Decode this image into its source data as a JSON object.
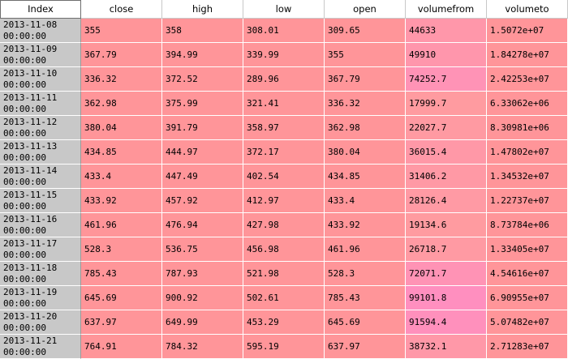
{
  "table": {
    "index_header": "Index",
    "columns": [
      "close",
      "high",
      "low",
      "open",
      "volumefrom",
      "volumeto"
    ],
    "rows": [
      {
        "index": "2013-11-08\n00:00:00",
        "cells": [
          "355",
          "358",
          "308.01",
          "309.65",
          "44633",
          "1.5072e+07"
        ]
      },
      {
        "index": "2013-11-09\n00:00:00",
        "cells": [
          "367.79",
          "394.99",
          "339.99",
          "355",
          "49910",
          "1.84278e+07"
        ]
      },
      {
        "index": "2013-11-10\n00:00:00",
        "cells": [
          "336.32",
          "372.52",
          "289.96",
          "367.79",
          "74252.7",
          "2.42253e+07"
        ]
      },
      {
        "index": "2013-11-11\n00:00:00",
        "cells": [
          "362.98",
          "375.99",
          "321.41",
          "336.32",
          "17999.7",
          "6.33062e+06"
        ]
      },
      {
        "index": "2013-11-12\n00:00:00",
        "cells": [
          "380.04",
          "391.79",
          "358.97",
          "362.98",
          "22027.7",
          "8.30981e+06"
        ]
      },
      {
        "index": "2013-11-13\n00:00:00",
        "cells": [
          "434.85",
          "444.97",
          "372.17",
          "380.04",
          "36015.4",
          "1.47802e+07"
        ]
      },
      {
        "index": "2013-11-14\n00:00:00",
        "cells": [
          "433.4",
          "447.49",
          "402.54",
          "434.85",
          "31406.2",
          "1.34532e+07"
        ]
      },
      {
        "index": "2013-11-15\n00:00:00",
        "cells": [
          "433.92",
          "457.92",
          "412.97",
          "433.4",
          "28126.4",
          "1.22737e+07"
        ]
      },
      {
        "index": "2013-11-16\n00:00:00",
        "cells": [
          "461.96",
          "476.94",
          "427.98",
          "433.92",
          "19134.6",
          "8.73784e+06"
        ]
      },
      {
        "index": "2013-11-17\n00:00:00",
        "cells": [
          "528.3",
          "536.75",
          "456.98",
          "461.96",
          "26718.7",
          "1.33405e+07"
        ]
      },
      {
        "index": "2013-11-18\n00:00:00",
        "cells": [
          "785.43",
          "787.93",
          "521.98",
          "528.3",
          "72071.7",
          "4.54616e+07"
        ]
      },
      {
        "index": "2013-11-19\n00:00:00",
        "cells": [
          "645.69",
          "900.92",
          "502.61",
          "785.43",
          "99101.8",
          "6.90955e+07"
        ]
      },
      {
        "index": "2013-11-20\n00:00:00",
        "cells": [
          "637.97",
          "649.99",
          "453.29",
          "645.69",
          "91594.4",
          "5.07482e+07"
        ]
      },
      {
        "index": "2013-11-21\n00:00:00",
        "cells": [
          "764.91",
          "784.32",
          "595.19",
          "637.97",
          "38732.1",
          "2.71283e+07"
        ]
      }
    ]
  },
  "colors": {
    "cell_default": "#ff9599",
    "volumefrom_low": "#ff9ba0",
    "volumefrom_high": "#ff8fbf",
    "index_background": "#c8c8c8",
    "header_background": "#ffffff"
  }
}
